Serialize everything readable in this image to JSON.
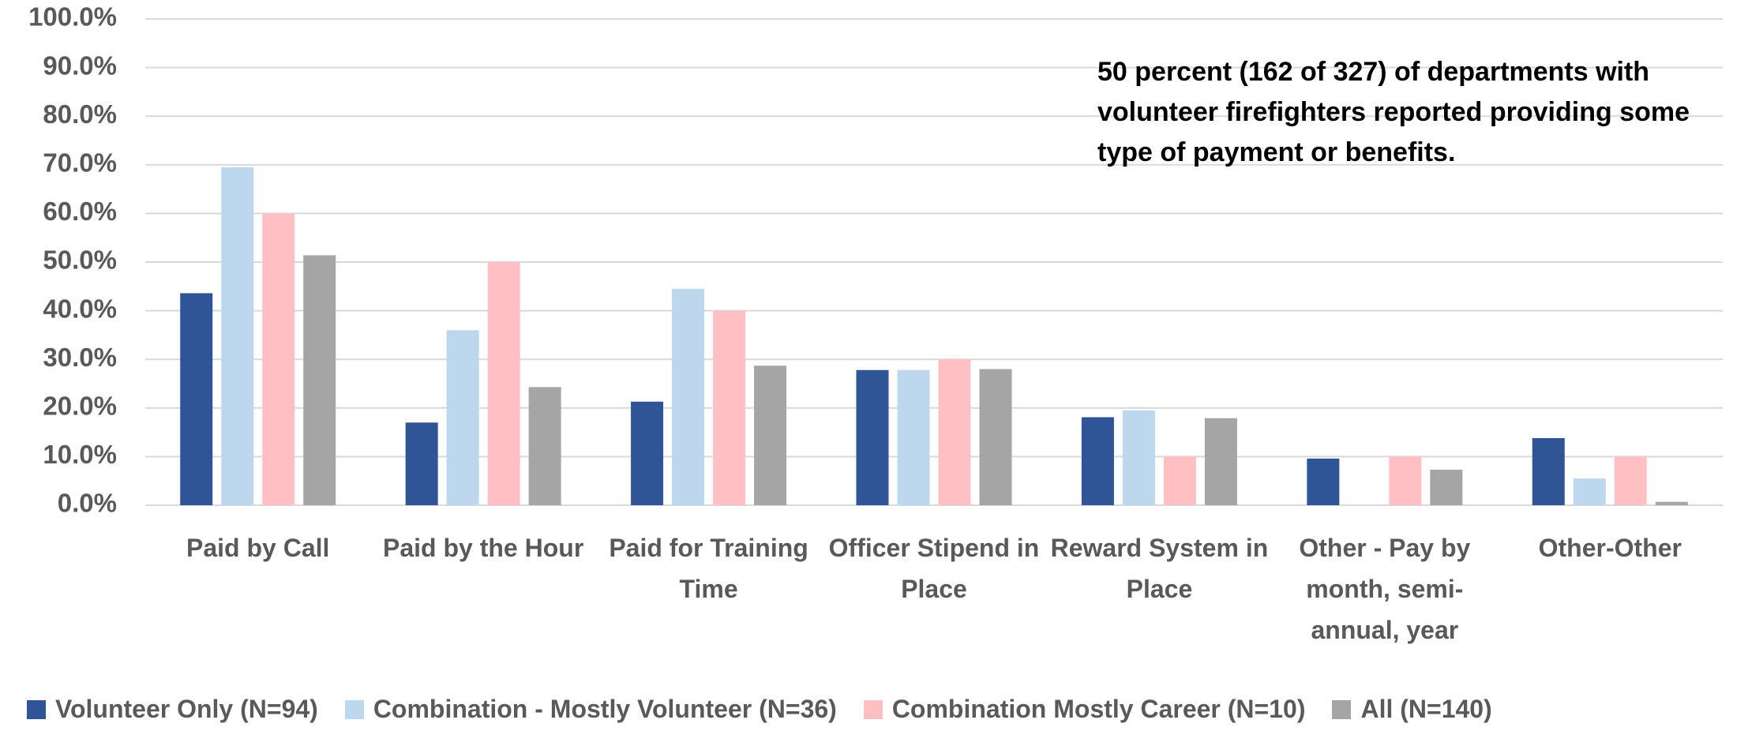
{
  "chart_data": {
    "type": "bar",
    "annotation": "50 percent (162 of 327) of departments with volunteer firefighters reported providing some type of payment or benefits.",
    "categories": [
      "Paid by Call",
      "Paid by the Hour",
      "Paid for Training Time",
      "Officer Stipend in Place",
      "Reward System in Place",
      "Other - Pay by month, semi-annual, year",
      "Other-Other"
    ],
    "series": [
      {
        "name": "Volunteer Only (N=94)",
        "color": "#2f5597",
        "values": [
          43.6,
          17.0,
          21.3,
          27.8,
          18.1,
          9.6,
          13.8
        ]
      },
      {
        "name": "Combination - Mostly Volunteer (N=36)",
        "color": "#bdd7ee",
        "values": [
          69.5,
          36.0,
          44.5,
          27.8,
          19.5,
          0,
          5.5
        ]
      },
      {
        "name": "Combination Mostly Career (N=10)",
        "color": "#ffc0c4",
        "values": [
          60.0,
          50.0,
          40.0,
          30.0,
          10.0,
          10.0,
          10.0
        ]
      },
      {
        "name": "All (N=140)",
        "color": "#a5a5a5",
        "values": [
          51.4,
          24.3,
          28.7,
          28.0,
          17.9,
          7.3,
          0.7
        ]
      }
    ],
    "ylim": [
      0,
      100
    ],
    "yticks": [
      {
        "value": 0,
        "label": "0.0%"
      },
      {
        "value": 10,
        "label": "10.0%"
      },
      {
        "value": 20,
        "label": "20.0%"
      },
      {
        "value": 30,
        "label": "30.0%"
      },
      {
        "value": 40,
        "label": "40.0%"
      },
      {
        "value": 50,
        "label": "50.0%"
      },
      {
        "value": 60,
        "label": "60.0%"
      },
      {
        "value": 70,
        "label": "70.0%"
      },
      {
        "value": 80,
        "label": "80.0%"
      },
      {
        "value": 90,
        "label": "90.0%"
      },
      {
        "value": 100,
        "label": "100.0%"
      }
    ],
    "grid": true,
    "legend": "bottom"
  }
}
